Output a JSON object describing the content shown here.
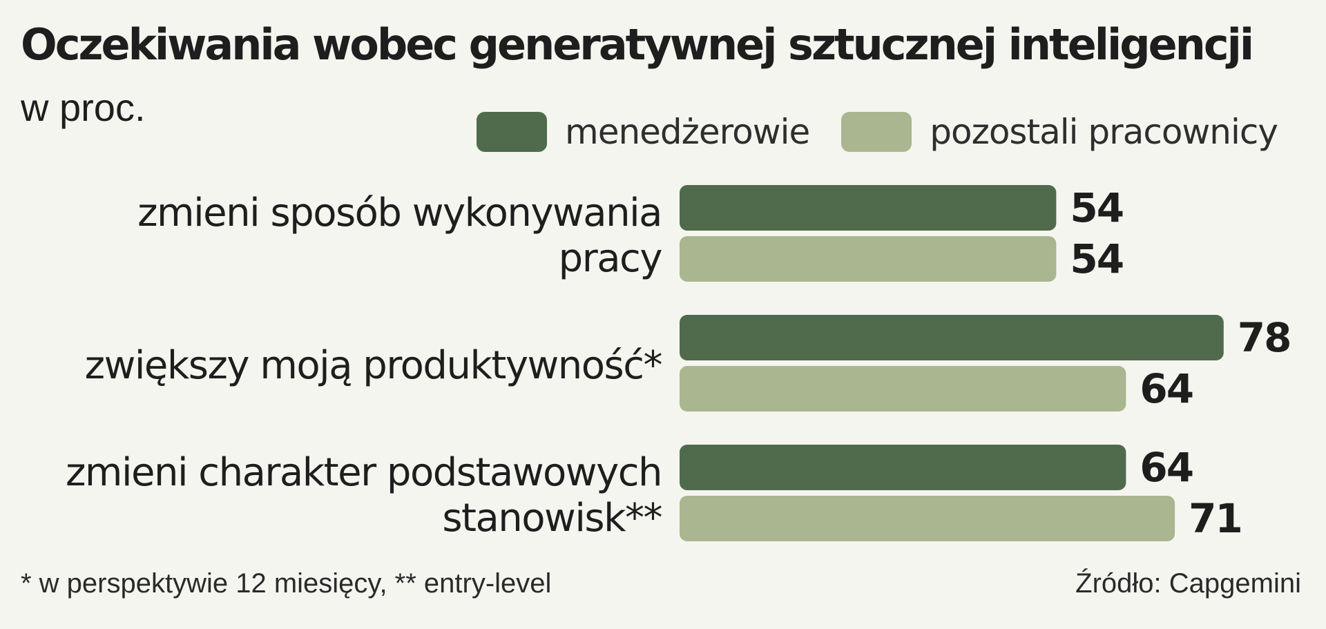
{
  "header": {
    "title": "Oczekiwania wobec generatywnej sztucznej inteligencji",
    "subtitle": "w proc."
  },
  "legend": [
    {
      "label": "menedżerowie",
      "color": "#4f6b4b"
    },
    {
      "label": "pozostali pracownicy",
      "color": "#a9b690"
    }
  ],
  "chart_data": {
    "type": "bar",
    "orientation": "horizontal",
    "title": "Oczekiwania wobec generatywnej sztucznej inteligencji",
    "subtitle": "w proc.",
    "categories": [
      [
        "zmieni sposób wykonywania",
        "pracy"
      ],
      [
        "zwiększy moją produktywność*"
      ],
      [
        "zmieni charakter podstawowych",
        "stanowisk**"
      ]
    ],
    "series": [
      {
        "name": "menedżerowie",
        "values": [
          54,
          78,
          64
        ],
        "color": "#4f6b4b"
      },
      {
        "name": "pozostali pracownicy",
        "values": [
          54,
          64,
          71
        ],
        "color": "#a9b690"
      }
    ],
    "value_labels": true,
    "legend_position": "top-right",
    "grid": false,
    "axis_visible": false,
    "xlim": [
      0,
      100
    ]
  },
  "footer": {
    "note": "* w perspektywie 12 miesięcy, ** entry-level",
    "source": "Źródło: Capgemini"
  }
}
